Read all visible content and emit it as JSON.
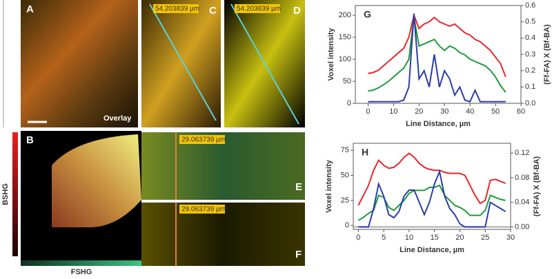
{
  "panels": {
    "a": {
      "label": "A",
      "caption": "Overlay"
    },
    "b": {
      "label": "B",
      "y_label": "BSHG",
      "x_label": "FSHG"
    },
    "c": {
      "label": "C",
      "length": "54.203839 µm"
    },
    "d": {
      "label": "D",
      "length": "54.203839 µm"
    },
    "e": {
      "label": "E",
      "length": "29.063739 µm"
    },
    "f": {
      "label": "F",
      "length": "29.063739 µm"
    }
  },
  "chart_data": [
    {
      "type": "line",
      "title": "G",
      "x_label": "Line Distance, µm",
      "y_label": "Voxel intensity",
      "y2_label": "(Ff-FA) X (Bf-BA)",
      "x": [
        0,
        2,
        4,
        6,
        8,
        10,
        12,
        14,
        16,
        18,
        20,
        22,
        24,
        26,
        28,
        30,
        32,
        34,
        36,
        38,
        40,
        42,
        44,
        46,
        48,
        50,
        52,
        54
      ],
      "series": [
        {
          "color": "#e8262b",
          "values": [
            68,
            70,
            75,
            85,
            95,
            105,
            115,
            125,
            150,
            200,
            170,
            180,
            185,
            195,
            185,
            180,
            175,
            180,
            170,
            160,
            155,
            145,
            140,
            130,
            120,
            105,
            90,
            60
          ]
        },
        {
          "color": "#1e9a3c",
          "values": [
            28,
            30,
            35,
            42,
            50,
            60,
            70,
            80,
            100,
            195,
            130,
            135,
            140,
            145,
            130,
            120,
            130,
            125,
            115,
            110,
            100,
            95,
            90,
            85,
            75,
            60,
            40,
            25
          ]
        },
        {
          "color": "#2b3ca8",
          "axis": "y2",
          "values": [
            0.01,
            0.01,
            0.01,
            0.01,
            0.01,
            0.01,
            0.01,
            0.02,
            0.1,
            0.55,
            0.15,
            0.2,
            0.1,
            0.3,
            0.1,
            0.2,
            0.15,
            0.05,
            0.1,
            0.02,
            0.01,
            0.08,
            0.01,
            0.01,
            0.01,
            0.01,
            0.01,
            0.01
          ]
        }
      ],
      "xlim": [
        -5,
        60
      ],
      "xticks": [
        0,
        10,
        20,
        30,
        40,
        50,
        60
      ],
      "ylim": [
        0,
        222
      ],
      "yticks": [
        0,
        50,
        100,
        150,
        200
      ],
      "y2lim": [
        0,
        0.6
      ],
      "y2ticks": [
        {
          "value": 0,
          "label": "0.0"
        },
        0.1,
        0.2,
        0.3,
        0.4,
        0.5,
        0.6
      ]
    },
    {
      "type": "line",
      "title": "H",
      "x_label": "Line Distance, µm",
      "y_label": "Voxel intensity",
      "y2_label": "(Ff-FA) X (Bf-BA)",
      "x": [
        0,
        1,
        2,
        3,
        4,
        5,
        6,
        7,
        8,
        9,
        10,
        11,
        12,
        13,
        14,
        15,
        16,
        17,
        18,
        19,
        20,
        21,
        22,
        23,
        24,
        25,
        26,
        27,
        28,
        29
      ],
      "series": [
        {
          "color": "#e8262b",
          "values": [
            20,
            30,
            40,
            55,
            65,
            60,
            57,
            58,
            62,
            68,
            72,
            68,
            62,
            58,
            56,
            55,
            55,
            53,
            52,
            52,
            52,
            50,
            40,
            30,
            22,
            25,
            45,
            46,
            44,
            42
          ]
        },
        {
          "color": "#1e9a3c",
          "values": [
            5,
            8,
            12,
            15,
            30,
            28,
            18,
            15,
            20,
            25,
            32,
            35,
            35,
            35,
            38,
            38,
            40,
            30,
            25,
            20,
            18,
            15,
            10,
            10,
            10,
            15,
            30,
            28,
            26,
            25
          ]
        },
        {
          "color": "#2b3ca8",
          "axis": "y2",
          "values": [
            0,
            0,
            0,
            0.03,
            0.07,
            0.05,
            0.02,
            0.015,
            0.025,
            0.05,
            0.06,
            0.06,
            0.04,
            0.02,
            0.04,
            0.07,
            0.09,
            0.05,
            0.03,
            0.02,
            0.005,
            0,
            0,
            0,
            0,
            0,
            0.04,
            0.035,
            0.03,
            0.025
          ]
        }
      ],
      "xlim": [
        -1,
        30
      ],
      "xticks": [
        0,
        5,
        10,
        15,
        20,
        25,
        30
      ],
      "ylim": [
        -4,
        82
      ],
      "yticks": [
        0,
        25,
        50,
        75
      ],
      "y2lim": [
        -0.004,
        0.136
      ],
      "y2ticks": [
        {
          "value": 0,
          "label": "0.00"
        },
        0.04,
        0.08,
        0.12
      ]
    }
  ]
}
